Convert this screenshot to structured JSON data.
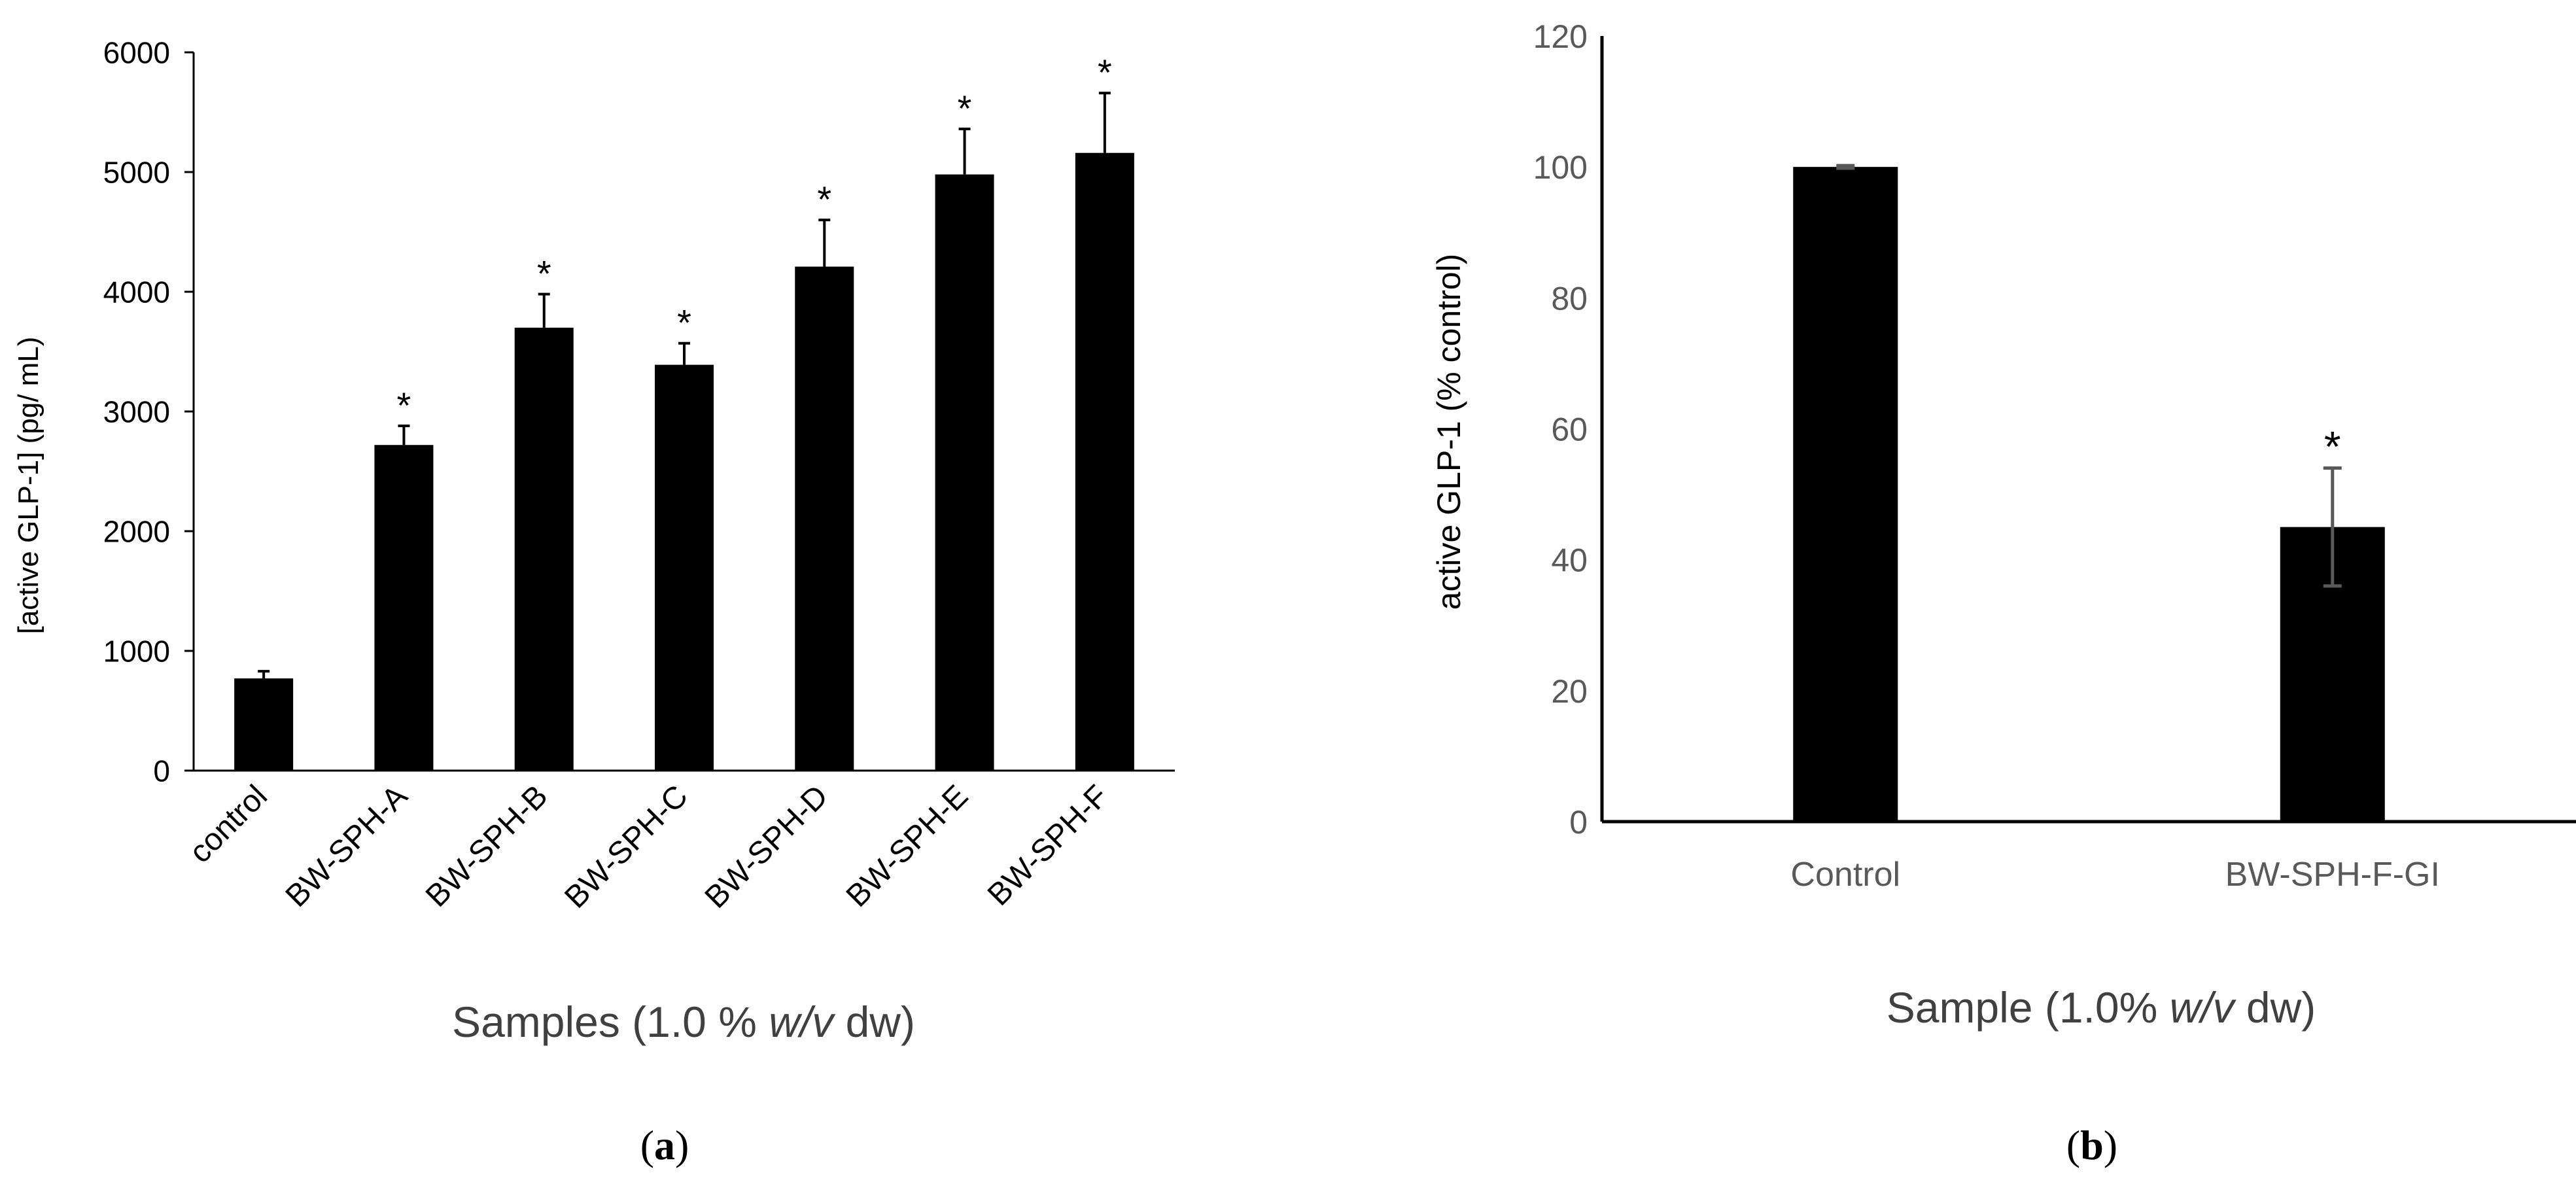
{
  "chart_data": [
    {
      "type": "bar",
      "panel_label_open": "(",
      "panel_label": "a",
      "panel_label_close": ")",
      "categories": [
        "control",
        "BW-SPH-A",
        "BW-SPH-B",
        "BW-SPH-C",
        "BW-SPH-D",
        "BW-SPH-E",
        "BW-SPH-F"
      ],
      "values": [
        770,
        2720,
        3700,
        3390,
        4210,
        4980,
        5160
      ],
      "errors": [
        60,
        160,
        280,
        180,
        390,
        380,
        500
      ],
      "significance": [
        "",
        "*",
        "*",
        "*",
        "*",
        "*",
        "*"
      ],
      "ylim": [
        0,
        6000
      ],
      "yticks": [
        0,
        1000,
        2000,
        3000,
        4000,
        5000,
        6000
      ],
      "ylabel": "[active GLP-1] (pg/ mL)",
      "xlabel_pre": "Samples (1.0 % ",
      "xlabel_italic": "w/v",
      "xlabel_post": " dw)",
      "bar_color": "#000000"
    },
    {
      "type": "bar",
      "panel_label_open": "(",
      "panel_label": "b",
      "panel_label_close": ")",
      "categories": [
        "Control",
        "BW-SPH-F-GI"
      ],
      "values": [
        100,
        45
      ],
      "errors": [
        0.2,
        9
      ],
      "significance": [
        "",
        "*"
      ],
      "ylim": [
        0,
        120
      ],
      "yticks": [
        0,
        20,
        40,
        60,
        80,
        100,
        120
      ],
      "ylabel": "active GLP-1 (% control)",
      "xlabel_pre": "Sample (1.0% ",
      "xlabel_italic": "w/v",
      "xlabel_post": " dw)",
      "bar_color": "#000000"
    }
  ]
}
